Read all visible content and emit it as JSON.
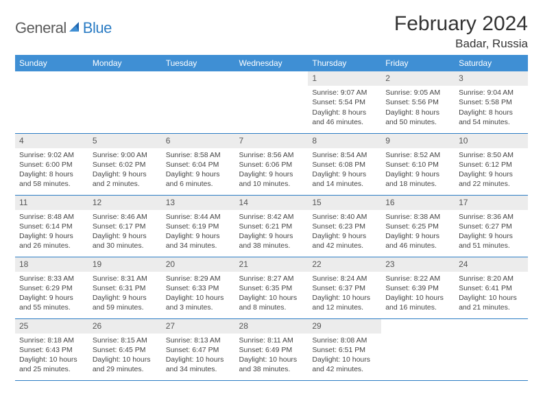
{
  "brand": {
    "text_gray": "General",
    "text_blue": "Blue"
  },
  "title": "February 2024",
  "location": "Badar, Russia",
  "weekdays": [
    "Sunday",
    "Monday",
    "Tuesday",
    "Wednesday",
    "Thursday",
    "Friday",
    "Saturday"
  ],
  "colors": {
    "header_bg": "#3f8fd4",
    "header_text": "#ffffff",
    "row_border": "#2b7cc4",
    "daynum_bg": "#ececec",
    "body_text": "#444444"
  },
  "weeks": [
    [
      null,
      null,
      null,
      null,
      {
        "n": "1",
        "sr": "Sunrise: 9:07 AM",
        "ss": "Sunset: 5:54 PM",
        "d1": "Daylight: 8 hours",
        "d2": "and 46 minutes."
      },
      {
        "n": "2",
        "sr": "Sunrise: 9:05 AM",
        "ss": "Sunset: 5:56 PM",
        "d1": "Daylight: 8 hours",
        "d2": "and 50 minutes."
      },
      {
        "n": "3",
        "sr": "Sunrise: 9:04 AM",
        "ss": "Sunset: 5:58 PM",
        "d1": "Daylight: 8 hours",
        "d2": "and 54 minutes."
      }
    ],
    [
      {
        "n": "4",
        "sr": "Sunrise: 9:02 AM",
        "ss": "Sunset: 6:00 PM",
        "d1": "Daylight: 8 hours",
        "d2": "and 58 minutes."
      },
      {
        "n": "5",
        "sr": "Sunrise: 9:00 AM",
        "ss": "Sunset: 6:02 PM",
        "d1": "Daylight: 9 hours",
        "d2": "and 2 minutes."
      },
      {
        "n": "6",
        "sr": "Sunrise: 8:58 AM",
        "ss": "Sunset: 6:04 PM",
        "d1": "Daylight: 9 hours",
        "d2": "and 6 minutes."
      },
      {
        "n": "7",
        "sr": "Sunrise: 8:56 AM",
        "ss": "Sunset: 6:06 PM",
        "d1": "Daylight: 9 hours",
        "d2": "and 10 minutes."
      },
      {
        "n": "8",
        "sr": "Sunrise: 8:54 AM",
        "ss": "Sunset: 6:08 PM",
        "d1": "Daylight: 9 hours",
        "d2": "and 14 minutes."
      },
      {
        "n": "9",
        "sr": "Sunrise: 8:52 AM",
        "ss": "Sunset: 6:10 PM",
        "d1": "Daylight: 9 hours",
        "d2": "and 18 minutes."
      },
      {
        "n": "10",
        "sr": "Sunrise: 8:50 AM",
        "ss": "Sunset: 6:12 PM",
        "d1": "Daylight: 9 hours",
        "d2": "and 22 minutes."
      }
    ],
    [
      {
        "n": "11",
        "sr": "Sunrise: 8:48 AM",
        "ss": "Sunset: 6:14 PM",
        "d1": "Daylight: 9 hours",
        "d2": "and 26 minutes."
      },
      {
        "n": "12",
        "sr": "Sunrise: 8:46 AM",
        "ss": "Sunset: 6:17 PM",
        "d1": "Daylight: 9 hours",
        "d2": "and 30 minutes."
      },
      {
        "n": "13",
        "sr": "Sunrise: 8:44 AM",
        "ss": "Sunset: 6:19 PM",
        "d1": "Daylight: 9 hours",
        "d2": "and 34 minutes."
      },
      {
        "n": "14",
        "sr": "Sunrise: 8:42 AM",
        "ss": "Sunset: 6:21 PM",
        "d1": "Daylight: 9 hours",
        "d2": "and 38 minutes."
      },
      {
        "n": "15",
        "sr": "Sunrise: 8:40 AM",
        "ss": "Sunset: 6:23 PM",
        "d1": "Daylight: 9 hours",
        "d2": "and 42 minutes."
      },
      {
        "n": "16",
        "sr": "Sunrise: 8:38 AM",
        "ss": "Sunset: 6:25 PM",
        "d1": "Daylight: 9 hours",
        "d2": "and 46 minutes."
      },
      {
        "n": "17",
        "sr": "Sunrise: 8:36 AM",
        "ss": "Sunset: 6:27 PM",
        "d1": "Daylight: 9 hours",
        "d2": "and 51 minutes."
      }
    ],
    [
      {
        "n": "18",
        "sr": "Sunrise: 8:33 AM",
        "ss": "Sunset: 6:29 PM",
        "d1": "Daylight: 9 hours",
        "d2": "and 55 minutes."
      },
      {
        "n": "19",
        "sr": "Sunrise: 8:31 AM",
        "ss": "Sunset: 6:31 PM",
        "d1": "Daylight: 9 hours",
        "d2": "and 59 minutes."
      },
      {
        "n": "20",
        "sr": "Sunrise: 8:29 AM",
        "ss": "Sunset: 6:33 PM",
        "d1": "Daylight: 10 hours",
        "d2": "and 3 minutes."
      },
      {
        "n": "21",
        "sr": "Sunrise: 8:27 AM",
        "ss": "Sunset: 6:35 PM",
        "d1": "Daylight: 10 hours",
        "d2": "and 8 minutes."
      },
      {
        "n": "22",
        "sr": "Sunrise: 8:24 AM",
        "ss": "Sunset: 6:37 PM",
        "d1": "Daylight: 10 hours",
        "d2": "and 12 minutes."
      },
      {
        "n": "23",
        "sr": "Sunrise: 8:22 AM",
        "ss": "Sunset: 6:39 PM",
        "d1": "Daylight: 10 hours",
        "d2": "and 16 minutes."
      },
      {
        "n": "24",
        "sr": "Sunrise: 8:20 AM",
        "ss": "Sunset: 6:41 PM",
        "d1": "Daylight: 10 hours",
        "d2": "and 21 minutes."
      }
    ],
    [
      {
        "n": "25",
        "sr": "Sunrise: 8:18 AM",
        "ss": "Sunset: 6:43 PM",
        "d1": "Daylight: 10 hours",
        "d2": "and 25 minutes."
      },
      {
        "n": "26",
        "sr": "Sunrise: 8:15 AM",
        "ss": "Sunset: 6:45 PM",
        "d1": "Daylight: 10 hours",
        "d2": "and 29 minutes."
      },
      {
        "n": "27",
        "sr": "Sunrise: 8:13 AM",
        "ss": "Sunset: 6:47 PM",
        "d1": "Daylight: 10 hours",
        "d2": "and 34 minutes."
      },
      {
        "n": "28",
        "sr": "Sunrise: 8:11 AM",
        "ss": "Sunset: 6:49 PM",
        "d1": "Daylight: 10 hours",
        "d2": "and 38 minutes."
      },
      {
        "n": "29",
        "sr": "Sunrise: 8:08 AM",
        "ss": "Sunset: 6:51 PM",
        "d1": "Daylight: 10 hours",
        "d2": "and 42 minutes."
      },
      null,
      null
    ]
  ]
}
